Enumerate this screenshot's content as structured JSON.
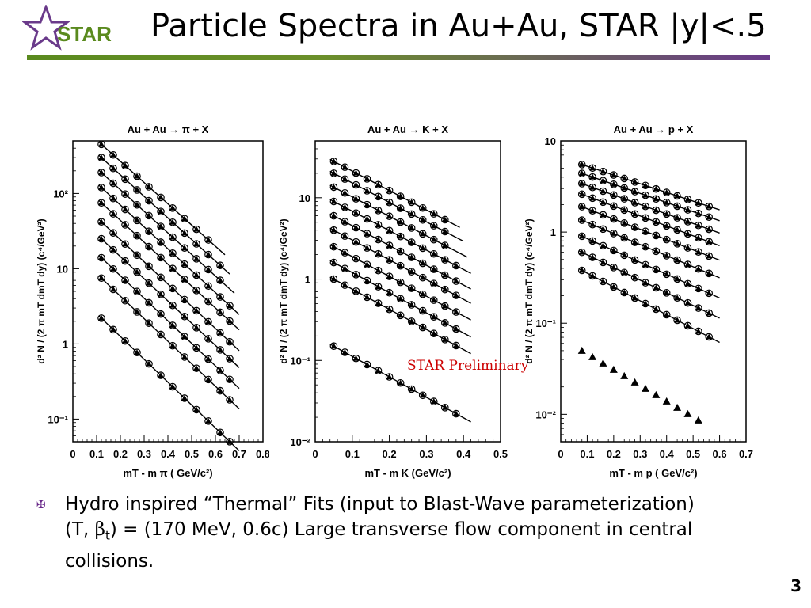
{
  "slide": {
    "title": "Particle Spectra in Au+Au, STAR |y|<.5",
    "logo_text": "STAR",
    "preliminary": "STAR Preliminary",
    "bullet_symbol": "✠",
    "bullet_line1": "Hydro inspired “Thermal” Fits (input to Blast-Wave parameterization)",
    "bullet_line2_a": "(T, ",
    "bullet_line2_beta": "β",
    "bullet_line2_sub": "t",
    "bullet_line2_b": ") = (170 MeV, 0.6c)  Large transverse flow component in central",
    "bullet_line3": "collisions.",
    "page_number": "3",
    "colors": {
      "accent_green": "#5a8a1e",
      "accent_purple": "#6a3a8a",
      "preliminary_red": "#cc0000"
    }
  },
  "chart_data": [
    {
      "type": "scatter",
      "title": "Au + Au → π + X",
      "ylabel": "d² N / (2 π mT dmT dy)   (c⁴/GeV²)",
      "xlabel": "mT - m π  ( GeV/c²)",
      "xlim": [
        0,
        0.8
      ],
      "ylim": [
        0.05,
        500
      ],
      "yscale": "log",
      "xticks": [
        "0",
        "0.1",
        "0.2",
        "0.3",
        "0.4",
        "0.5",
        "0.6",
        "0.7",
        "0.8"
      ],
      "yticks": [
        {
          "v": 0.1,
          "label": "10⁻¹"
        },
        {
          "v": 1,
          "label": "1"
        },
        {
          "v": 10,
          "label": "10"
        },
        {
          "v": 100,
          "label": "10²"
        }
      ],
      "x": [
        0.12,
        0.17,
        0.22,
        0.27,
        0.32,
        0.37,
        0.42,
        0.47,
        0.52,
        0.57,
        0.62,
        0.66
      ],
      "series": [
        {
          "y0": 450,
          "slope": 6.5,
          "xmax": 0.6
        },
        {
          "y0": 300,
          "slope": 6.6,
          "xmax": 0.62
        },
        {
          "y0": 190,
          "slope": 6.6,
          "xmax": 0.64
        },
        {
          "y0": 120,
          "slope": 6.7,
          "xmax": 0.66
        },
        {
          "y0": 75,
          "slope": 6.7,
          "xmax": 0.66
        },
        {
          "y0": 42,
          "slope": 6.8,
          "xmax": 0.66
        },
        {
          "y0": 25,
          "slope": 6.8,
          "xmax": 0.66
        },
        {
          "y0": 14,
          "slope": 6.9,
          "xmax": 0.66
        },
        {
          "y0": 7.5,
          "slope": 6.9,
          "xmax": 0.66
        },
        {
          "y0": 2.2,
          "slope": 7.0,
          "xmax": 0.66
        }
      ]
    },
    {
      "type": "scatter",
      "title": "Au + Au → K + X",
      "ylabel": "d² N / (2 π mT dmT dy)   (c⁴/GeV²)",
      "xlabel": "mT - m K  (GeV/c²)",
      "xlim": [
        0,
        0.5
      ],
      "ylim": [
        0.01,
        50
      ],
      "yscale": "log",
      "xticks": [
        "0",
        "0.1",
        "0.2",
        "0.3",
        "0.4",
        "0.5"
      ],
      "yticks": [
        {
          "v": 0.01,
          "label": "10⁻²"
        },
        {
          "v": 0.1,
          "label": "10⁻¹"
        },
        {
          "v": 1,
          "label": "1"
        },
        {
          "v": 10,
          "label": "10"
        }
      ],
      "x": [
        0.05,
        0.08,
        0.11,
        0.14,
        0.17,
        0.2,
        0.23,
        0.26,
        0.29,
        0.32,
        0.35,
        0.38
      ],
      "series": [
        {
          "y0": 28,
          "slope": 5.5,
          "xmax": 0.35
        },
        {
          "y0": 20,
          "slope": 5.5,
          "xmax": 0.36
        },
        {
          "y0": 13.5,
          "slope": 5.5,
          "xmax": 0.37
        },
        {
          "y0": 9,
          "slope": 5.5,
          "xmax": 0.38
        },
        {
          "y0": 6,
          "slope": 5.6,
          "xmax": 0.38
        },
        {
          "y0": 4,
          "slope": 5.6,
          "xmax": 0.38
        },
        {
          "y0": 2.5,
          "slope": 5.6,
          "xmax": 0.38
        },
        {
          "y0": 1.6,
          "slope": 5.7,
          "xmax": 0.38
        },
        {
          "y0": 1.0,
          "slope": 5.7,
          "xmax": 0.38
        },
        {
          "y0": 0.15,
          "slope": 5.8,
          "xmax": 0.38
        }
      ]
    },
    {
      "type": "scatter",
      "title": "Au + Au → p + X",
      "ylabel": "d² N / (2 π mT dmT dy)   (c⁴/GeV²)",
      "xlabel": "mT - m p  ( GeV/c²)",
      "xlim": [
        0,
        0.7
      ],
      "ylim": [
        0.005,
        10
      ],
      "yscale": "log",
      "xticks": [
        "0",
        "0.1",
        "0.2",
        "0.3",
        "0.4",
        "0.5",
        "0.6",
        "0.7"
      ],
      "yticks": [
        {
          "v": 0.01,
          "label": "10⁻²"
        },
        {
          "v": 0.1,
          "label": "10⁻¹"
        },
        {
          "v": 1,
          "label": "1"
        },
        {
          "v": 10,
          "label": "10"
        }
      ],
      "x": [
        0.08,
        0.12,
        0.16,
        0.2,
        0.24,
        0.28,
        0.32,
        0.36,
        0.4,
        0.44,
        0.48,
        0.52,
        0.56
      ],
      "series": [
        {
          "y0": 5.5,
          "slope": 2.2,
          "xmax": 0.56
        },
        {
          "y0": 4.4,
          "slope": 2.3,
          "xmax": 0.56
        },
        {
          "y0": 3.4,
          "slope": 2.4,
          "xmax": 0.56
        },
        {
          "y0": 2.6,
          "slope": 2.5,
          "xmax": 0.56
        },
        {
          "y0": 1.9,
          "slope": 2.6,
          "xmax": 0.56
        },
        {
          "y0": 1.35,
          "slope": 2.8,
          "xmax": 0.56
        },
        {
          "y0": 0.9,
          "slope": 3.0,
          "xmax": 0.56
        },
        {
          "y0": 0.6,
          "slope": 3.2,
          "xmax": 0.56
        },
        {
          "y0": 0.38,
          "slope": 3.5,
          "xmax": 0.56
        },
        {
          "y0": 0.05,
          "slope": 4.0,
          "xmax": 0.52
        }
      ]
    }
  ]
}
